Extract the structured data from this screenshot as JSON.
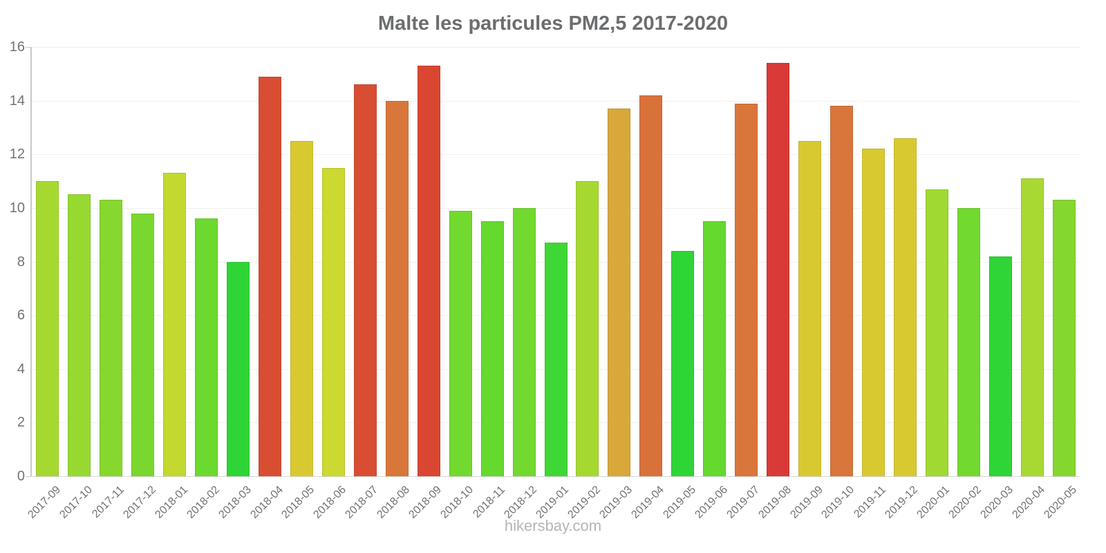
{
  "title": "Malte les particules PM2,5 2017-2020",
  "watermark": "hikersbay.com",
  "chart_data": {
    "type": "bar",
    "title": "Malte les particules PM2,5 2017-2020",
    "xlabel": "",
    "ylabel": "",
    "ylim": [
      0,
      16
    ],
    "yticks": [
      0,
      2,
      4,
      6,
      8,
      10,
      12,
      14,
      16
    ],
    "grid": true,
    "legend": false,
    "categories": [
      "2017-09",
      "2017-10",
      "2017-11",
      "2017-12",
      "2018-01",
      "2018-02",
      "2018-03",
      "2018-04",
      "2018-05",
      "2018-06",
      "2018-07",
      "2018-08",
      "2018-09",
      "2018-10",
      "2018-11",
      "2018-12",
      "2019-01",
      "2019-02",
      "2019-03",
      "2019-04",
      "2019-05",
      "2019-06",
      "2019-07",
      "2019-08",
      "2019-09",
      "2019-10",
      "2019-11",
      "2019-12",
      "2020-01",
      "2020-02",
      "2020-03",
      "2020-04",
      "2020-05"
    ],
    "values": [
      11.0,
      10.5,
      10.3,
      9.8,
      11.3,
      9.6,
      8.0,
      14.9,
      12.5,
      11.5,
      14.6,
      14.0,
      15.3,
      9.9,
      9.5,
      10.0,
      8.7,
      11.0,
      13.7,
      14.2,
      8.4,
      9.5,
      13.9,
      15.4,
      12.5,
      13.8,
      12.2,
      12.6,
      10.7,
      10.0,
      8.2,
      11.1,
      10.3
    ],
    "bar_colors": [
      "#A6D930",
      "#97D930",
      "#86D72E",
      "#79D72E",
      "#C3D92F",
      "#6CD92E",
      "#2FD437",
      "#D94E33",
      "#D9C931",
      "#CBD931",
      "#D94E33",
      "#D9773B",
      "#D94733",
      "#72D92F",
      "#65D92E",
      "#72D92F",
      "#3FD735",
      "#A6D930",
      "#D9A83A",
      "#D9713A",
      "#2FD437",
      "#65D92E",
      "#D9763B",
      "#D93A38",
      "#D9C931",
      "#D9763B",
      "#D9C931",
      "#D9C931",
      "#9FD932",
      "#72D92F",
      "#2FD437",
      "#A8D932",
      "#84D72E"
    ],
    "axis_color": "#c9c9c9",
    "grid_color": "#f0f0f0",
    "label_color": "#6f7275",
    "title_color": "#6b6d6f"
  }
}
